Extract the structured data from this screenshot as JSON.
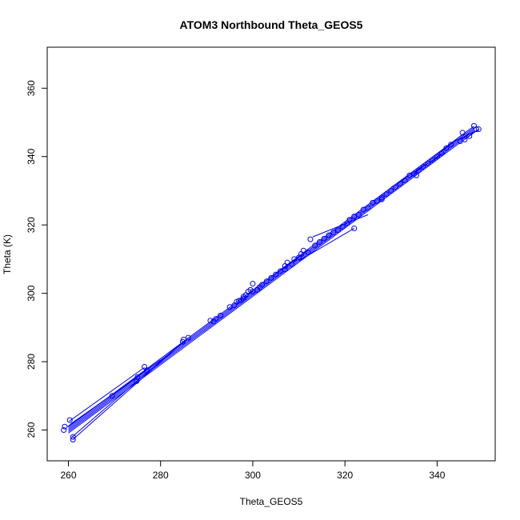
{
  "chart_data": {
    "type": "scatter",
    "title": "ATOM3 Northbound Theta_GEOS5",
    "xlabel": "Theta_GEOS5",
    "ylabel": "Theta (K)",
    "xlim": [
      255.4,
      352.6
    ],
    "ylim": [
      251,
      372
    ],
    "xticks": [
      260,
      280,
      300,
      320,
      340
    ],
    "yticks": [
      260,
      280,
      300,
      320,
      340,
      360
    ],
    "grid": false,
    "legend": "none",
    "color": "#0000ff",
    "trend_line": {
      "x_start": 260,
      "x_end": 348,
      "slope": 1.0,
      "intercept": 0
    },
    "segments": [
      {
        "x1": 260.2,
        "y1": 262.6,
        "x2": 276.5,
        "y2": 278.3
      },
      {
        "x1": 260.5,
        "y1": 261.8,
        "x2": 275.0,
        "y2": 275.5
      },
      {
        "x1": 260.8,
        "y1": 258.0,
        "x2": 285.0,
        "y2": 286.0
      },
      {
        "x1": 261.0,
        "y1": 257.3,
        "x2": 286.0,
        "y2": 287.0
      },
      {
        "x1": 259.8,
        "y1": 261.0,
        "x2": 280.0,
        "y2": 280.5
      },
      {
        "x1": 313.0,
        "y1": 316.5,
        "x2": 325.0,
        "y2": 323.0
      },
      {
        "x1": 310.0,
        "y1": 309.5,
        "x2": 322.0,
        "y2": 319.0
      },
      {
        "x1": 300.5,
        "y1": 301.5,
        "x2": 312.0,
        "y2": 312.5
      },
      {
        "x1": 330.0,
        "y1": 331.0,
        "x2": 342.0,
        "y2": 341.5
      },
      {
        "x1": 343.0,
        "y1": 344.0,
        "x2": 348.5,
        "y2": 347.5
      },
      {
        "x1": 346.0,
        "y1": 345.0,
        "x2": 349.0,
        "y2": 348.0
      },
      {
        "x1": 340.0,
        "y1": 340.5,
        "x2": 345.5,
        "y2": 346.5
      }
    ],
    "points": [
      [
        259.0,
        260.0
      ],
      [
        259.2,
        261.0
      ],
      [
        260.3,
        262.9
      ],
      [
        261.0,
        257.2
      ],
      [
        261.0,
        258.0
      ],
      [
        269.5,
        270.0
      ],
      [
        274.8,
        274.3
      ],
      [
        275.0,
        275.5
      ],
      [
        276.5,
        278.5
      ],
      [
        277.0,
        277.5
      ],
      [
        284.8,
        285.8
      ],
      [
        285.0,
        286.5
      ],
      [
        286.0,
        287.0
      ],
      [
        290.8,
        292.0
      ],
      [
        291.5,
        291.8
      ],
      [
        292.0,
        292.5
      ],
      [
        293.0,
        293.5
      ],
      [
        295.0,
        296.0
      ],
      [
        296.0,
        296.5
      ],
      [
        296.5,
        297.5
      ],
      [
        297.0,
        297.8
      ],
      [
        297.5,
        298.0
      ],
      [
        298.0,
        298.5
      ],
      [
        298.0,
        299.0
      ],
      [
        298.5,
        299.5
      ],
      [
        299.0,
        300.5
      ],
      [
        299.5,
        301.0
      ],
      [
        300.0,
        300.5
      ],
      [
        300.0,
        302.8
      ],
      [
        301.0,
        301.0
      ],
      [
        301.5,
        301.8
      ],
      [
        302.0,
        302.5
      ],
      [
        303.0,
        303.5
      ],
      [
        304.0,
        304.5
      ],
      [
        305.0,
        305.5
      ],
      [
        306.0,
        306.5
      ],
      [
        307.0,
        307.0
      ],
      [
        307.0,
        308.0
      ],
      [
        307.5,
        309.0
      ],
      [
        308.5,
        308.5
      ],
      [
        309.0,
        310.0
      ],
      [
        310.0,
        310.5
      ],
      [
        310.5,
        311.5
      ],
      [
        311.0,
        312.5
      ],
      [
        312.0,
        312.0
      ],
      [
        312.5,
        315.8
      ],
      [
        313.5,
        314.0
      ],
      [
        314.5,
        315.0
      ],
      [
        315.5,
        316.0
      ],
      [
        316.5,
        317.0
      ],
      [
        317.5,
        317.8
      ],
      [
        318.5,
        318.5
      ],
      [
        319.5,
        319.5
      ],
      [
        320.5,
        320.5
      ],
      [
        321.0,
        321.5
      ],
      [
        322.0,
        319.0
      ],
      [
        322.0,
        322.5
      ],
      [
        323.0,
        323.0
      ],
      [
        324.0,
        324.5
      ],
      [
        325.0,
        325.0
      ],
      [
        326.0,
        326.5
      ],
      [
        327.0,
        327.0
      ],
      [
        328.0,
        328.0
      ],
      [
        328.0,
        327.5
      ],
      [
        329.0,
        329.0
      ],
      [
        330.0,
        330.0
      ],
      [
        331.0,
        331.0
      ],
      [
        332.0,
        332.0
      ],
      [
        333.0,
        333.0
      ],
      [
        334.0,
        334.5
      ],
      [
        335.0,
        335.0
      ],
      [
        335.5,
        334.5
      ],
      [
        336.0,
        336.0
      ],
      [
        337.0,
        337.0
      ],
      [
        338.0,
        338.0
      ],
      [
        339.0,
        339.0
      ],
      [
        340.0,
        340.0
      ],
      [
        341.0,
        341.0
      ],
      [
        342.0,
        342.5
      ],
      [
        343.0,
        343.5
      ],
      [
        345.0,
        344.5
      ],
      [
        345.5,
        347.0
      ],
      [
        346.0,
        345.0
      ],
      [
        347.0,
        346.0
      ],
      [
        348.0,
        349.0
      ],
      [
        348.5,
        348.0
      ],
      [
        349.0,
        348.0
      ]
    ]
  }
}
